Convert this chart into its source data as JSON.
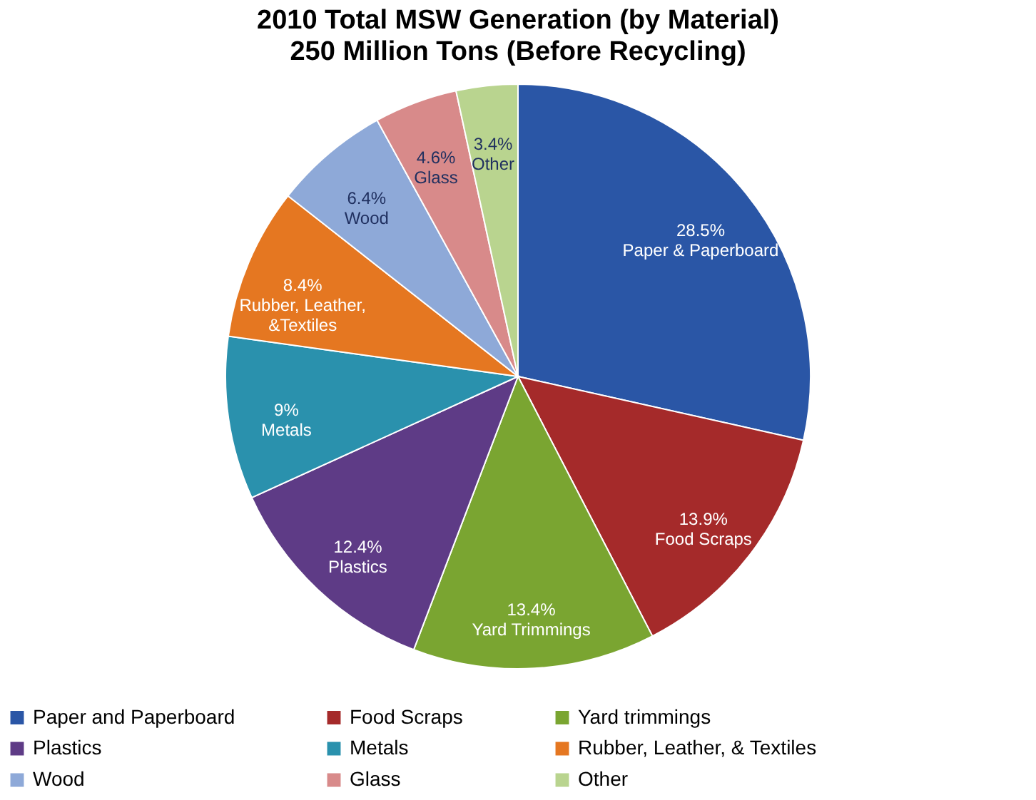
{
  "chart_data": {
    "type": "pie",
    "title": "2010 Total MSW Generation (by Material)",
    "subtitle": "250 Million Tons (Before Recycling)",
    "categories": [
      "Paper and Paperboard",
      "Food Scraps",
      "Yard trimmings",
      "Plastics",
      "Metals",
      "Rubber, Leather, & Textiles",
      "Wood",
      "Glass",
      "Other"
    ],
    "values": [
      28.5,
      13.9,
      13.4,
      12.4,
      9,
      8.4,
      6.4,
      4.6,
      3.4
    ],
    "colors": [
      "#2a56a6",
      "#a52a2a",
      "#7aa531",
      "#5e3b86",
      "#2a91ad",
      "#e57721",
      "#8ea9d8",
      "#d88a8a",
      "#b9d48f"
    ],
    "value_labels": [
      "28.5%\nPaper & Paperboard",
      "13.9%\nFood Scraps",
      "13.4%\nYard Trimmings",
      "12.4%\nPlastics",
      "9%\nMetals",
      "8.4%\nRubber, Leather,\n&Textiles",
      "6.4%\nWood",
      "4.6%\nGlass",
      "3.4%\nOther"
    ],
    "legend": "bottom"
  }
}
